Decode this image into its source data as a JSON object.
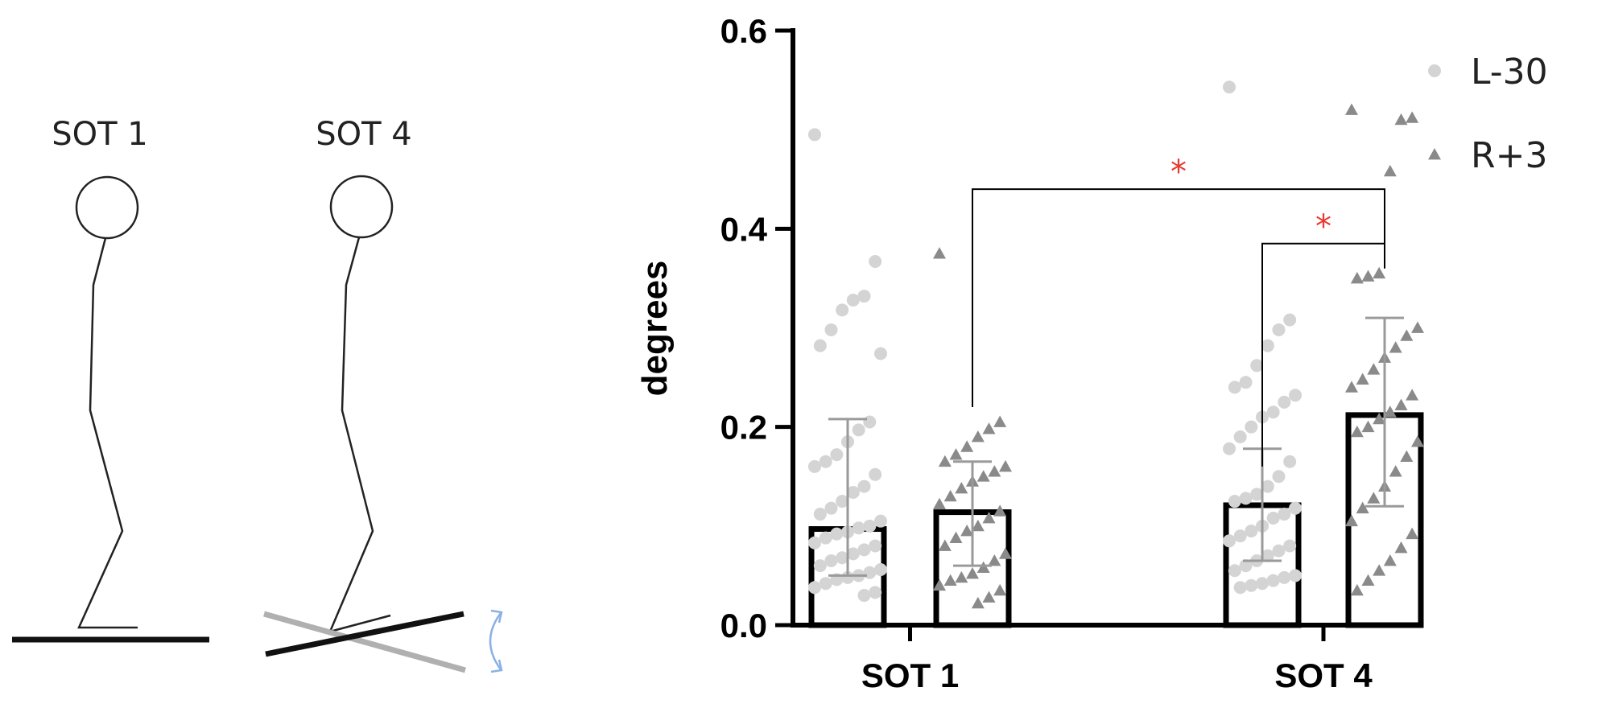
{
  "illustration": {
    "sot1_label": "SOT 1",
    "sot4_label": "SOT 4",
    "platform_tilt_icon": "tilt-arrow-icon",
    "colors": {
      "figure": "#222222",
      "platform": "#111111",
      "platform_tilted": "#b0b0b0",
      "tilt_arrow": "#8ab0e6"
    }
  },
  "chart_data": {
    "type": "bar",
    "ylabel": "degrees",
    "ylim": [
      0,
      0.6
    ],
    "yticks": [
      "0.0",
      "0.2",
      "0.4",
      "0.6"
    ],
    "categories": [
      "SOT 1",
      "SOT 4"
    ],
    "legend_position": "top-right",
    "grid": false,
    "series": [
      {
        "name": "L-30",
        "marker": "circle",
        "color": "#d4d4d4",
        "means": [
          0.097,
          0.121
        ],
        "sd_upper": [
          0.208,
          0.178
        ],
        "sd_lower": [
          0.05,
          0.065
        ],
        "points": [
          [
            0.495,
            0.367,
            0.332,
            0.328,
            0.318,
            0.298,
            0.282,
            0.274,
            0.205,
            0.197,
            0.185,
            0.172,
            0.165,
            0.16,
            0.152,
            0.14,
            0.134,
            0.125,
            0.118,
            0.112,
            0.105,
            0.1,
            0.098,
            0.094,
            0.092,
            0.088,
            0.083,
            0.08,
            0.076,
            0.072,
            0.068,
            0.065,
            0.06,
            0.056,
            0.053,
            0.05,
            0.048,
            0.046,
            0.042,
            0.038,
            0.033,
            0.03
          ],
          [
            0.543,
            0.308,
            0.298,
            0.282,
            0.262,
            0.245,
            0.24,
            0.232,
            0.225,
            0.215,
            0.21,
            0.2,
            0.19,
            0.178,
            0.165,
            0.15,
            0.14,
            0.132,
            0.128,
            0.125,
            0.118,
            0.112,
            0.108,
            0.1,
            0.095,
            0.09,
            0.085,
            0.08,
            0.075,
            0.07,
            0.065,
            0.06,
            0.055,
            0.05,
            0.048,
            0.045,
            0.042,
            0.04,
            0.038
          ]
        ]
      },
      {
        "name": "R+3",
        "marker": "triangle",
        "color": "#8a8a8a",
        "means": [
          0.114,
          0.212
        ],
        "sd_upper": [
          0.165,
          0.31
        ],
        "sd_lower": [
          0.06,
          0.12
        ],
        "points": [
          [
            0.375,
            0.205,
            0.198,
            0.19,
            0.18,
            0.172,
            0.165,
            0.16,
            0.155,
            0.15,
            0.145,
            0.138,
            0.13,
            0.122,
            0.115,
            0.108,
            0.1,
            0.095,
            0.088,
            0.08,
            0.072,
            0.065,
            0.058,
            0.052,
            0.048,
            0.045,
            0.04,
            0.035,
            0.028,
            0.022
          ],
          [
            0.52,
            0.512,
            0.51,
            0.458,
            0.355,
            0.352,
            0.35,
            0.3,
            0.292,
            0.28,
            0.27,
            0.258,
            0.248,
            0.24,
            0.232,
            0.222,
            0.215,
            0.208,
            0.2,
            0.195,
            0.185,
            0.17,
            0.155,
            0.14,
            0.128,
            0.118,
            0.105,
            0.092,
            0.078,
            0.065,
            0.055,
            0.045,
            0.035
          ]
        ]
      }
    ],
    "significance": [
      {
        "label": "*",
        "from": {
          "category": 0,
          "series": 1
        },
        "to": {
          "category": 1,
          "series": 1
        },
        "level": 0.44,
        "left_drop": 0.22,
        "right_drop": 0.36
      },
      {
        "label": "*",
        "from": {
          "category": 1,
          "series": 0
        },
        "to": {
          "category": 1,
          "series": 1
        },
        "level": 0.385,
        "left_drop": 0.16,
        "right_drop": 0.36
      }
    ],
    "colors": {
      "axis": "#000000",
      "bar_fill": "#ffffff",
      "bar_edge": "#000000",
      "error_bar": "#9a9a9a",
      "bracket": "#000000",
      "sig_star": "#e8392f"
    }
  }
}
